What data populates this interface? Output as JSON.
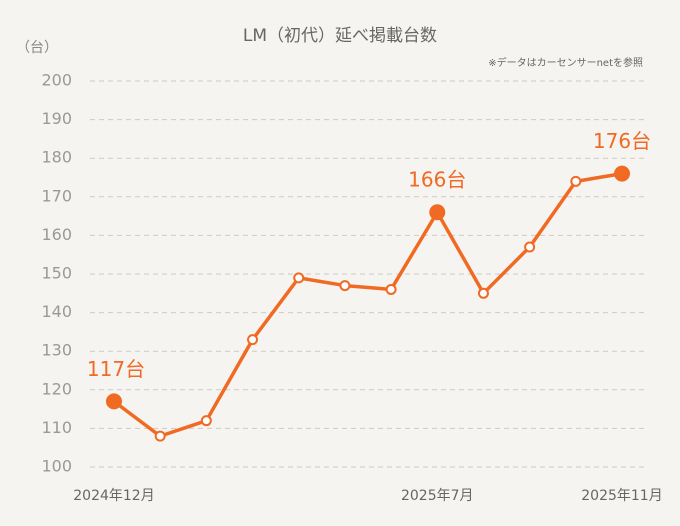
{
  "chart_data": {
    "type": "line",
    "title": "LM（初代）延べ掲載台数",
    "y_unit": "（台）",
    "note": "※データはカーセンサーnetを参照",
    "categories": [
      "2024年12月",
      null,
      null,
      null,
      null,
      null,
      null,
      "2025年7月",
      null,
      null,
      null,
      "2025年11月"
    ],
    "series": [
      {
        "name": "LM",
        "color": "#f06a24",
        "values": [
          117,
          108,
          112,
          133,
          149,
          147,
          146,
          166,
          145,
          157,
          174,
          176
        ],
        "value_labels": [
          "117台",
          null,
          null,
          null,
          null,
          null,
          null,
          "166台",
          null,
          null,
          null,
          "176台"
        ]
      }
    ],
    "ylim": [
      100,
      200
    ],
    "yticks": [
      100,
      110,
      120,
      130,
      140,
      150,
      160,
      170,
      180,
      190,
      200
    ],
    "grid": true
  }
}
